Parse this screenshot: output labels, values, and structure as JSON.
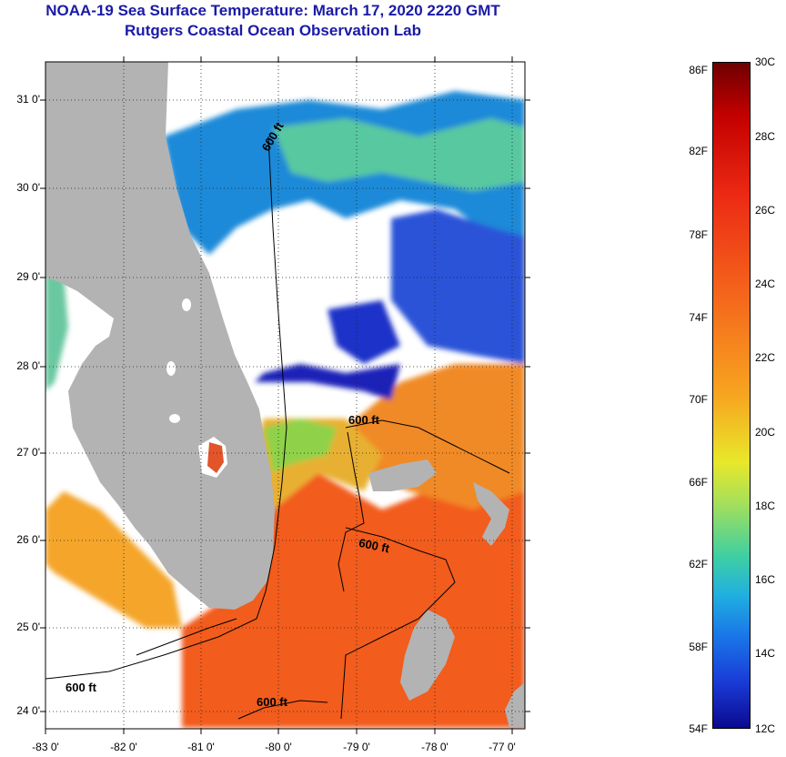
{
  "title": "NOAA-19 Sea Surface Temperature:  March 17, 2020 2220 GMT",
  "subtitle": "Rutgers Coastal Ocean Observation Lab",
  "map": {
    "lat_labels": [
      "31 0'",
      "30 0'",
      "29 0'",
      "28 0'",
      "27 0'",
      "26 0'",
      "25 0'",
      "24 0'"
    ],
    "lon_labels": [
      "-83 0'",
      "-82 0'",
      "-81 0'",
      "-80 0'",
      "-79 0'",
      "-78 0'",
      "-77 0'"
    ],
    "contour_labels": [
      "600 ft",
      "600 ft",
      "600 ft",
      "600 ft",
      "600 ft"
    ],
    "colors": {
      "land": "#b3b3b3",
      "cloud": "#ffffff",
      "warm": "#f06018",
      "cool": "#1c2fd0"
    }
  },
  "colorbar": {
    "fahrenheit_labels": [
      "86F",
      "82F",
      "78F",
      "74F",
      "70F",
      "66F",
      "62F",
      "58F",
      "54F"
    ],
    "celsius_labels": [
      "30C",
      "28C",
      "26C",
      "24C",
      "22C",
      "20C",
      "18C",
      "16C",
      "14C",
      "12C"
    ],
    "range_F": [
      54,
      86
    ],
    "range_C": [
      12,
      30
    ]
  }
}
